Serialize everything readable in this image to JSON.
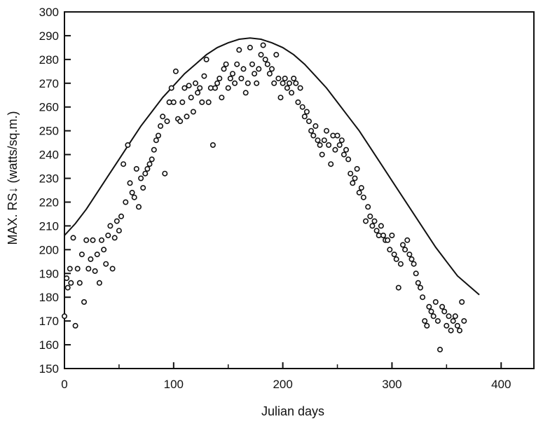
{
  "chart_data": {
    "type": "scatter",
    "title": "",
    "xlabel": "Julian days",
    "ylabel": "MAX. RS↓ (watts/sq.m.)",
    "xlim": [
      0,
      430
    ],
    "ylim": [
      150,
      300
    ],
    "x_ticks": [
      0,
      100,
      200,
      300,
      400
    ],
    "y_ticks": [
      150,
      160,
      170,
      180,
      190,
      200,
      210,
      220,
      230,
      240,
      250,
      260,
      270,
      280,
      290,
      300
    ],
    "x_tick_labels": [
      "0",
      "100",
      "200",
      "300",
      "400"
    ],
    "y_tick_labels": [
      "150",
      "160",
      "170",
      "180",
      "190",
      "200",
      "210",
      "220",
      "230",
      "240",
      "250",
      "260",
      "270",
      "280",
      "290",
      "300"
    ],
    "grid": false,
    "curve": {
      "x": [
        0,
        10,
        20,
        30,
        40,
        50,
        60,
        70,
        80,
        90,
        100,
        110,
        120,
        130,
        140,
        150,
        160,
        170,
        180,
        190,
        200,
        210,
        220,
        230,
        240,
        250,
        260,
        270,
        280,
        290,
        300,
        310,
        320,
        330,
        340,
        350,
        360,
        370,
        380
      ],
      "y": [
        206,
        211,
        217,
        224,
        231,
        238,
        245,
        252,
        258,
        264,
        269,
        274,
        278,
        282,
        285,
        287,
        288.5,
        289,
        288.5,
        287,
        285,
        282,
        278,
        273,
        268,
        262,
        256,
        250,
        243,
        236,
        229,
        222,
        215,
        208,
        201,
        195,
        189,
        185,
        181
      ]
    },
    "points": {
      "x": [
        0,
        2,
        3,
        5,
        6,
        8,
        10,
        12,
        14,
        16,
        18,
        20,
        22,
        24,
        26,
        28,
        30,
        32,
        34,
        36,
        38,
        40,
        42,
        44,
        46,
        48,
        50,
        52,
        54,
        56,
        58,
        60,
        62,
        64,
        66,
        68,
        70,
        72,
        74,
        76,
        78,
        80,
        82,
        84,
        86,
        88,
        90,
        92,
        94,
        96,
        98,
        100,
        102,
        104,
        106,
        108,
        110,
        112,
        114,
        116,
        118,
        120,
        122,
        124,
        126,
        128,
        130,
        132,
        134,
        136,
        138,
        140,
        142,
        144,
        146,
        148,
        150,
        152,
        154,
        156,
        158,
        160,
        162,
        164,
        166,
        168,
        170,
        172,
        174,
        176,
        178,
        180,
        182,
        184,
        186,
        188,
        190,
        192,
        194,
        196,
        198,
        200,
        202,
        204,
        206,
        208,
        210,
        212,
        214,
        216,
        218,
        220,
        222,
        224,
        226,
        228,
        230,
        232,
        234,
        236,
        238,
        240,
        242,
        244,
        246,
        248,
        250,
        252,
        254,
        256,
        258,
        260,
        262,
        264,
        266,
        268,
        270,
        272,
        274,
        276,
        278,
        280,
        282,
        284,
        286,
        288,
        290,
        292,
        294,
        296,
        298,
        300,
        302,
        304,
        306,
        308,
        310,
        312,
        314,
        316,
        318,
        320,
        322,
        324,
        326,
        328,
        330,
        332,
        334,
        336,
        338,
        340,
        342,
        344,
        346,
        348,
        350,
        352,
        354,
        356,
        358,
        360,
        362,
        364,
        366
      ],
      "y": [
        172,
        188,
        184,
        192,
        186,
        205,
        168,
        192,
        186,
        198,
        178,
        204,
        192,
        196,
        204,
        191,
        198,
        186,
        204,
        200,
        194,
        206,
        210,
        192,
        205,
        212,
        208,
        214,
        236,
        220,
        244,
        228,
        224,
        222,
        234,
        218,
        230,
        226,
        232,
        234,
        236,
        238,
        242,
        246,
        248,
        252,
        256,
        232,
        254,
        262,
        268,
        262,
        275,
        255,
        254,
        262,
        268,
        256,
        269,
        264,
        258,
        270,
        266,
        268,
        262,
        273,
        280,
        262,
        268,
        244,
        268,
        270,
        272,
        264,
        276,
        278,
        268,
        272,
        274,
        270,
        278,
        284,
        272,
        276,
        266,
        270,
        285,
        278,
        274,
        270,
        276,
        282,
        286,
        280,
        278,
        274,
        276,
        270,
        282,
        272,
        264,
        270,
        272,
        268,
        270,
        266,
        272,
        270,
        262,
        268,
        260,
        256,
        258,
        254,
        250,
        248,
        252,
        246,
        244,
        240,
        246,
        250,
        244,
        236,
        248,
        242,
        248,
        244,
        246,
        240,
        242,
        238,
        232,
        228,
        230,
        234,
        224,
        226,
        222,
        212,
        218,
        214,
        210,
        212,
        208,
        206,
        210,
        206,
        204,
        204,
        200,
        206,
        198,
        196,
        184,
        194,
        202,
        200,
        204,
        198,
        196,
        194,
        190,
        186,
        184,
        180,
        170,
        168,
        176,
        174,
        172,
        178,
        170,
        158,
        176,
        174,
        168,
        172,
        166,
        170,
        172,
        168,
        166,
        178,
        170
      ]
    }
  }
}
